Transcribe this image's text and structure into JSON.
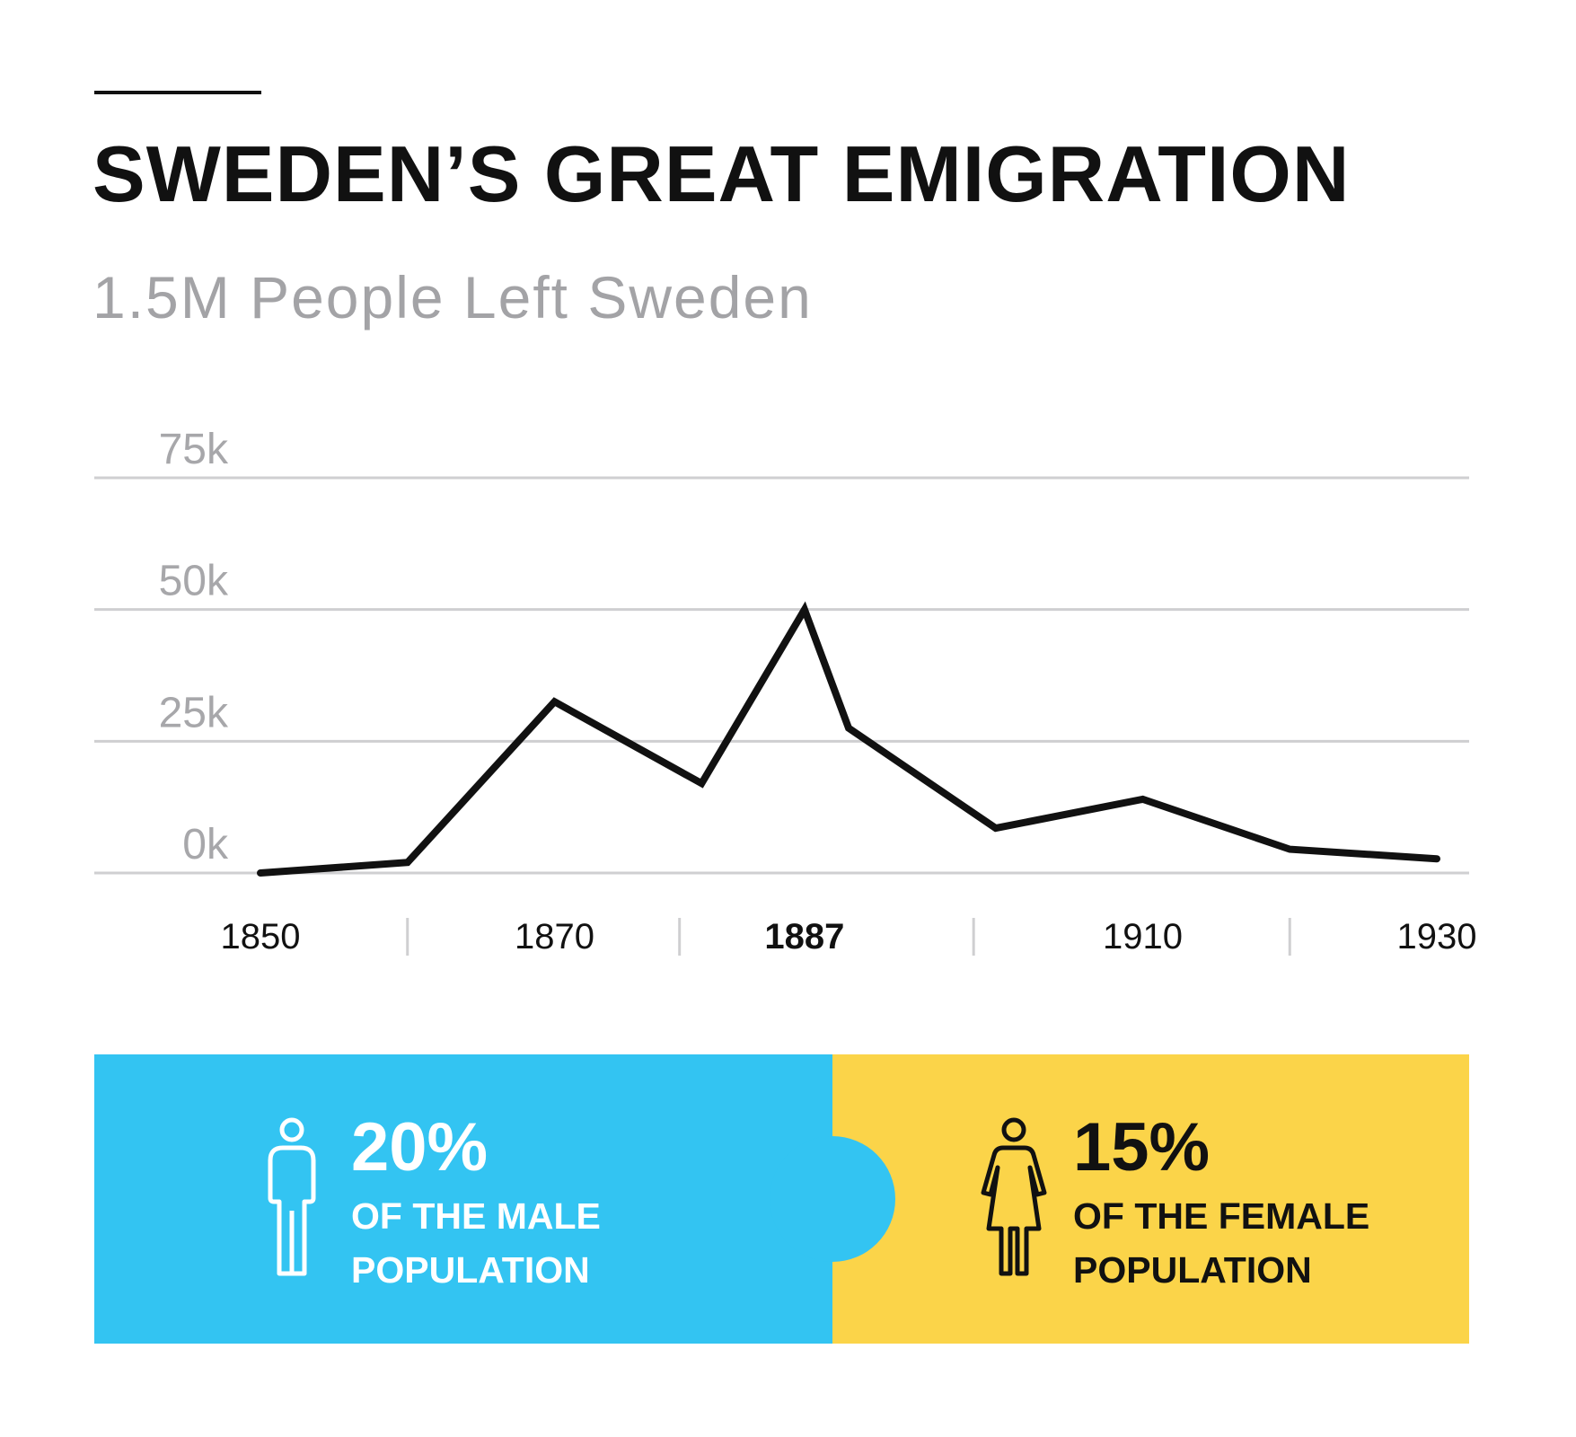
{
  "title": "SWEDEN’S GREAT EMIGRATION",
  "subtitle": "1.5M People Left Sweden",
  "colors": {
    "male_panel": "#33c4f2",
    "female_panel": "#fbd449",
    "line": "#111111",
    "grid": "#cfcfd1",
    "muted_text": "#a3a3a6"
  },
  "chart_data": {
    "type": "line",
    "title": "SWEDEN’S GREAT EMIGRATION",
    "subtitle": "1.5M People Left Sweden",
    "xlabel": "",
    "ylabel": "",
    "ylim": [
      0,
      75000
    ],
    "y_ticks": [
      {
        "value": 0,
        "label": "0k"
      },
      {
        "value": 25000,
        "label": "25k"
      },
      {
        "value": 50000,
        "label": "50k"
      },
      {
        "value": 75000,
        "label": "75k"
      }
    ],
    "x_range": [
      1850,
      1930
    ],
    "x_ticks": [
      {
        "value": 1850,
        "label": "1850",
        "bold": false
      },
      {
        "value": 1870,
        "label": "1870",
        "bold": false
      },
      {
        "value": 1887,
        "label": "1887",
        "bold": true
      },
      {
        "value": 1910,
        "label": "1910",
        "bold": false
      },
      {
        "value": 1930,
        "label": "1930",
        "bold": false
      }
    ],
    "grid": true,
    "series": [
      {
        "x": [
          1850,
          1860,
          1870,
          1880,
          1887,
          1890,
          1900,
          1910,
          1920,
          1930
        ],
        "y": [
          0,
          2000,
          32500,
          17000,
          50000,
          27500,
          8500,
          14000,
          4500,
          2700
        ]
      }
    ]
  },
  "stats": {
    "male": {
      "value": "20%",
      "line1": "OF THE MALE",
      "line2": "POPULATION",
      "icon": "male-person-icon"
    },
    "female": {
      "value": "15%",
      "line1": "OF THE FEMALE",
      "line2": "POPULATION",
      "icon": "female-person-icon"
    }
  }
}
